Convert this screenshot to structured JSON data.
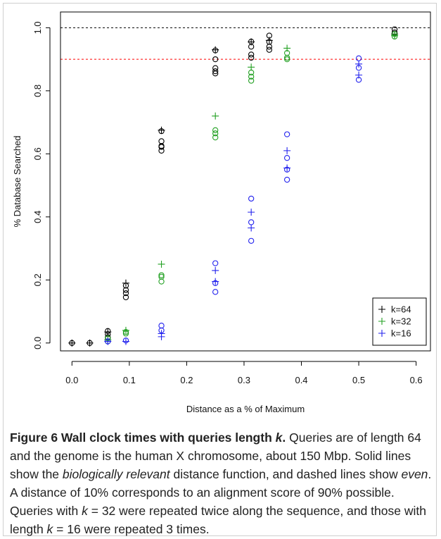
{
  "chart_data": {
    "type": "scatter",
    "xlabel": "Distance as a % of Maximum",
    "ylabel": "% Database Searched",
    "xlim": [
      -0.02,
      0.625
    ],
    "ylim": [
      -0.025,
      1.05
    ],
    "x_ticks": [
      0.0,
      0.1,
      0.2,
      0.3,
      0.4,
      0.5,
      0.6
    ],
    "x_tick_labels": [
      "0.0",
      "0.1",
      "0.2",
      "0.3",
      "0.4",
      "0.5",
      "0.6"
    ],
    "y_ticks": [
      0.0,
      0.2,
      0.4,
      0.6,
      0.8,
      1.0
    ],
    "y_tick_labels": [
      "0.0",
      "0.2",
      "0.4",
      "0.6",
      "0.8",
      "1.0"
    ],
    "y_tick_label_rotation": "vertical",
    "reference_lines": [
      {
        "y": 1.0,
        "color": "#000000",
        "style": "dashed"
      },
      {
        "y": 0.9,
        "color": "#ff0000",
        "style": "dashed"
      }
    ],
    "legend_position": "bottom-right",
    "series": [
      {
        "name": "k=64",
        "color": "#000000",
        "mean_points": [
          {
            "x": 0.0,
            "y": 0.0
          },
          {
            "x": 0.031,
            "y": 0.0
          },
          {
            "x": 0.0625,
            "y": 0.035
          },
          {
            "x": 0.094,
            "y": 0.19
          },
          {
            "x": 0.156,
            "y": 0.675
          },
          {
            "x": 0.25,
            "y": 0.93
          },
          {
            "x": 0.3125,
            "y": 0.955
          },
          {
            "x": 0.344,
            "y": 0.96
          },
          {
            "x": 0.5625,
            "y": 0.98
          }
        ],
        "run_points": [
          {
            "x": 0.0,
            "y": 0.0
          },
          {
            "x": 0.031,
            "y": 0.0
          },
          {
            "x": 0.0625,
            "y": 0.038
          },
          {
            "x": 0.0625,
            "y": 0.028
          },
          {
            "x": 0.0625,
            "y": 0.018
          },
          {
            "x": 0.094,
            "y": 0.182
          },
          {
            "x": 0.094,
            "y": 0.168
          },
          {
            "x": 0.094,
            "y": 0.158
          },
          {
            "x": 0.094,
            "y": 0.145
          },
          {
            "x": 0.156,
            "y": 0.672
          },
          {
            "x": 0.156,
            "y": 0.64
          },
          {
            "x": 0.156,
            "y": 0.625
          },
          {
            "x": 0.156,
            "y": 0.622
          },
          {
            "x": 0.156,
            "y": 0.61
          },
          {
            "x": 0.25,
            "y": 0.928
          },
          {
            "x": 0.25,
            "y": 0.9
          },
          {
            "x": 0.25,
            "y": 0.872
          },
          {
            "x": 0.25,
            "y": 0.862
          },
          {
            "x": 0.25,
            "y": 0.855
          },
          {
            "x": 0.3125,
            "y": 0.956
          },
          {
            "x": 0.3125,
            "y": 0.94
          },
          {
            "x": 0.3125,
            "y": 0.915
          },
          {
            "x": 0.3125,
            "y": 0.905
          },
          {
            "x": 0.344,
            "y": 0.975
          },
          {
            "x": 0.344,
            "y": 0.955
          },
          {
            "x": 0.344,
            "y": 0.94
          },
          {
            "x": 0.344,
            "y": 0.93
          },
          {
            "x": 0.5625,
            "y": 0.995
          },
          {
            "x": 0.5625,
            "y": 0.985
          }
        ]
      },
      {
        "name": "k=32",
        "color": "#22a022",
        "mean_points": [
          {
            "x": 0.0625,
            "y": 0.01
          },
          {
            "x": 0.094,
            "y": 0.04
          },
          {
            "x": 0.156,
            "y": 0.25
          },
          {
            "x": 0.25,
            "y": 0.72
          },
          {
            "x": 0.3125,
            "y": 0.875
          },
          {
            "x": 0.375,
            "y": 0.935
          },
          {
            "x": 0.5625,
            "y": 0.975
          }
        ],
        "run_points": [
          {
            "x": 0.0625,
            "y": 0.015
          },
          {
            "x": 0.0625,
            "y": 0.005
          },
          {
            "x": 0.094,
            "y": 0.035
          },
          {
            "x": 0.094,
            "y": 0.03
          },
          {
            "x": 0.156,
            "y": 0.215
          },
          {
            "x": 0.156,
            "y": 0.21
          },
          {
            "x": 0.156,
            "y": 0.195
          },
          {
            "x": 0.25,
            "y": 0.675
          },
          {
            "x": 0.25,
            "y": 0.665
          },
          {
            "x": 0.25,
            "y": 0.652
          },
          {
            "x": 0.3125,
            "y": 0.858
          },
          {
            "x": 0.3125,
            "y": 0.845
          },
          {
            "x": 0.3125,
            "y": 0.832
          },
          {
            "x": 0.375,
            "y": 0.92
          },
          {
            "x": 0.375,
            "y": 0.905
          },
          {
            "x": 0.375,
            "y": 0.9
          },
          {
            "x": 0.5625,
            "y": 0.98
          },
          {
            "x": 0.5625,
            "y": 0.972
          }
        ]
      },
      {
        "name": "k=16",
        "color": "#2222ee",
        "mean_points": [
          {
            "x": 0.0625,
            "y": 0.005
          },
          {
            "x": 0.094,
            "y": 0.005
          },
          {
            "x": 0.156,
            "y": 0.02
          },
          {
            "x": 0.156,
            "y": 0.03
          },
          {
            "x": 0.25,
            "y": 0.23
          },
          {
            "x": 0.25,
            "y": 0.195
          },
          {
            "x": 0.3125,
            "y": 0.415
          },
          {
            "x": 0.3125,
            "y": 0.365
          },
          {
            "x": 0.375,
            "y": 0.61
          },
          {
            "x": 0.375,
            "y": 0.555
          },
          {
            "x": 0.5,
            "y": 0.885
          },
          {
            "x": 0.5,
            "y": 0.85
          }
        ],
        "run_points": [
          {
            "x": 0.0625,
            "y": 0.005
          },
          {
            "x": 0.094,
            "y": 0.008
          },
          {
            "x": 0.156,
            "y": 0.055
          },
          {
            "x": 0.156,
            "y": 0.04
          },
          {
            "x": 0.25,
            "y": 0.253
          },
          {
            "x": 0.25,
            "y": 0.19
          },
          {
            "x": 0.25,
            "y": 0.162
          },
          {
            "x": 0.3125,
            "y": 0.458
          },
          {
            "x": 0.3125,
            "y": 0.383
          },
          {
            "x": 0.3125,
            "y": 0.324
          },
          {
            "x": 0.375,
            "y": 0.662
          },
          {
            "x": 0.375,
            "y": 0.587
          },
          {
            "x": 0.375,
            "y": 0.55
          },
          {
            "x": 0.375,
            "y": 0.518
          },
          {
            "x": 0.5,
            "y": 0.903
          },
          {
            "x": 0.5,
            "y": 0.873
          },
          {
            "x": 0.5,
            "y": 0.835
          }
        ]
      }
    ]
  },
  "caption": {
    "title": "Figure 6 Wall clock times with queries length",
    "title_k": "k",
    "title_end": ".",
    "p1": " Queries are of length 64 and the genome is the human X chromosome, about 150 Mbp. Solid lines show the ",
    "bio": "biologically relevant",
    "p2": " distance function, and dashed lines show ",
    "even": "even",
    "p3": ". A distance of 10% corresponds to an alignment score of 90% possible. Queries with ",
    "k1": "k",
    "p4": " = 32 were repeated twice along the sequence, and those with length ",
    "k2": "k",
    "p5": " = 16 were repeated 3 times."
  }
}
